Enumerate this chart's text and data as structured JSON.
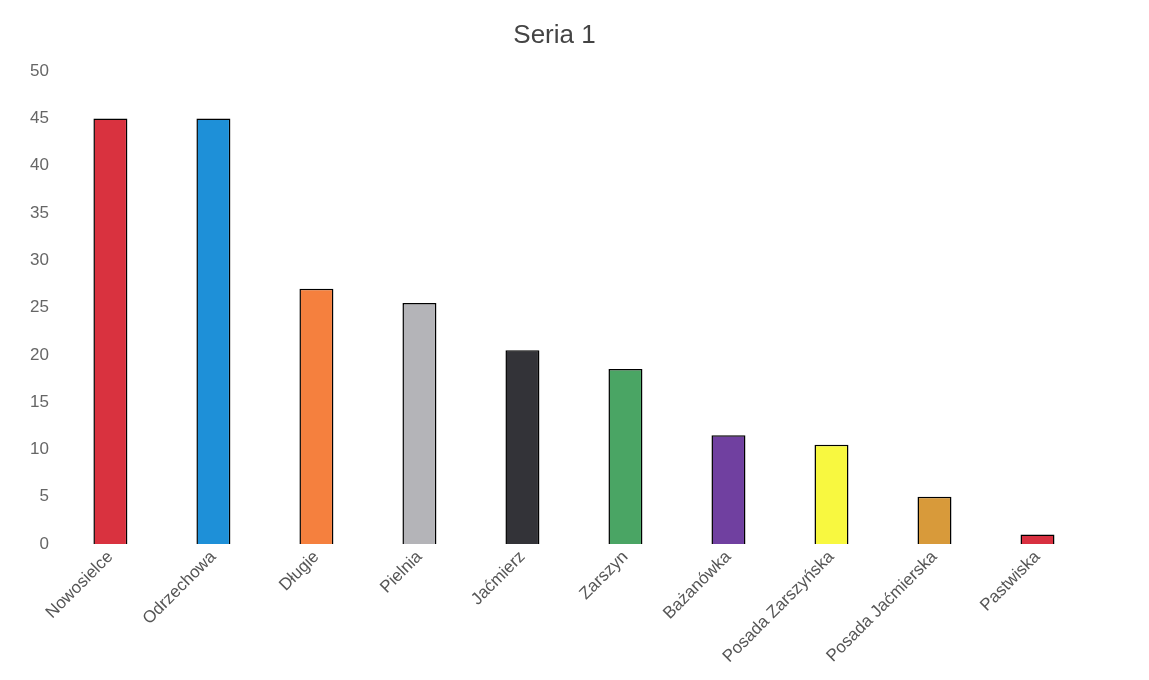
{
  "chart_data": {
    "type": "bar",
    "title": "Seria 1",
    "categories": [
      "Nowosielce",
      "Odrzechowa",
      "Długie",
      "Pielnia",
      "Jaćmierz",
      "Zarszyn",
      "Bażanówka",
      "Posada Zarszyńska",
      "Posada Jaćmierska",
      "Pastwiska"
    ],
    "values": [
      45,
      45,
      27,
      25.5,
      20.5,
      18.5,
      11.5,
      10.5,
      5,
      1
    ],
    "colors": [
      "#d9323f",
      "#1e90d8",
      "#f5803e",
      "#b4b4b8",
      "#333338",
      "#4aa564",
      "#7040a0",
      "#f8f840",
      "#d89a3a",
      "#d83040"
    ],
    "ylim": [
      0,
      50
    ],
    "yticks": [
      0,
      5,
      10,
      15,
      20,
      25,
      30,
      35,
      40,
      45,
      50
    ],
    "grid": false,
    "legend": false
  }
}
